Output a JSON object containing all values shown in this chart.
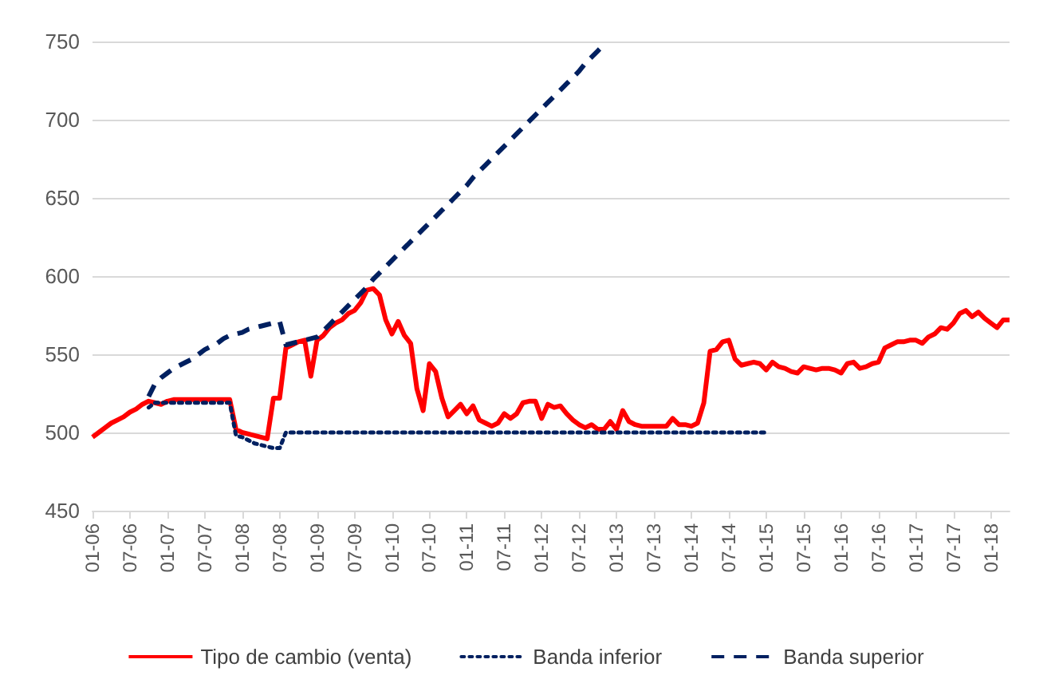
{
  "chart_data": {
    "type": "line",
    "categories": [
      "01-06",
      null,
      null,
      null,
      null,
      null,
      "07-06",
      null,
      null,
      null,
      null,
      null,
      "01-07",
      null,
      null,
      null,
      null,
      null,
      "07-07",
      null,
      null,
      null,
      null,
      null,
      "01-08",
      null,
      null,
      null,
      null,
      null,
      "07-08",
      null,
      null,
      null,
      null,
      null,
      "01-09",
      null,
      null,
      null,
      null,
      null,
      "07-09",
      null,
      null,
      null,
      null,
      null,
      "01-10",
      null,
      null,
      null,
      null,
      null,
      "07-10",
      null,
      null,
      null,
      null,
      null,
      "01-11",
      null,
      null,
      null,
      null,
      null,
      "07-11",
      null,
      null,
      null,
      null,
      null,
      "01-12",
      null,
      null,
      null,
      null,
      null,
      "07-12",
      null,
      null,
      null,
      null,
      null,
      "01-13",
      null,
      null,
      null,
      null,
      null,
      "07-13",
      null,
      null,
      null,
      null,
      null,
      "01-14",
      null,
      null,
      null,
      null,
      null,
      "07-14",
      null,
      null,
      null,
      null,
      null,
      "01-15",
      null,
      null,
      null,
      null,
      null,
      "07-15",
      null,
      null,
      null,
      null,
      null,
      "01-16",
      null,
      null,
      null,
      null,
      null,
      "07-16",
      null,
      null,
      null,
      null,
      null,
      "01-17",
      null,
      null,
      null,
      null,
      null,
      "07-17",
      null,
      null,
      null,
      null,
      null,
      "01-18",
      null,
      null,
      null
    ],
    "series": [
      {
        "name": "Tipo de cambio (venta)",
        "color": "#ff0000",
        "line_style": "solid",
        "values": [
          497,
          500,
          503,
          506,
          508,
          510,
          513,
          515,
          518,
          520,
          519,
          518,
          520,
          521,
          521,
          521,
          521,
          521,
          521,
          521,
          521,
          521,
          521,
          502,
          500,
          499,
          498,
          497,
          496,
          522,
          522,
          554,
          556,
          558,
          559,
          536,
          559,
          562,
          567,
          570,
          572,
          576,
          578,
          583,
          591,
          592,
          588,
          572,
          563,
          571,
          562,
          557,
          528,
          514,
          544,
          539,
          522,
          510,
          514,
          518,
          512,
          517,
          508,
          506,
          504,
          506,
          512,
          509,
          512,
          519,
          520,
          520,
          509,
          518,
          516,
          517,
          512,
          508,
          505,
          503,
          505,
          502,
          502,
          507,
          502,
          514,
          507,
          505,
          504,
          504,
          504,
          504,
          504,
          509,
          505,
          505,
          504,
          506,
          519,
          552,
          553,
          558,
          559,
          547,
          543,
          544,
          545,
          544,
          540,
          545,
          542,
          541,
          539,
          538,
          542,
          541,
          540,
          541,
          541,
          540,
          538,
          544,
          545,
          541,
          542,
          544,
          545,
          554,
          556,
          558,
          558,
          559,
          559,
          557,
          561,
          563,
          567,
          566,
          570,
          576,
          578,
          574,
          577,
          573,
          570,
          567,
          572,
          572
        ]
      },
      {
        "name": "Banda inferior",
        "color": "#002060",
        "line_style": "dotted",
        "values": [
          null,
          null,
          null,
          null,
          null,
          null,
          null,
          null,
          null,
          516,
          519,
          519,
          519,
          519,
          519,
          519,
          519,
          519,
          519,
          519,
          519,
          519,
          519,
          498,
          497,
          495,
          493,
          492,
          491,
          490,
          490,
          500,
          500,
          500,
          500,
          500,
          500,
          500,
          500,
          500,
          500,
          500,
          500,
          500,
          500,
          500,
          500,
          500,
          500,
          500,
          500,
          500,
          500,
          500,
          500,
          500,
          500,
          500,
          500,
          500,
          500,
          500,
          500,
          500,
          500,
          500,
          500,
          500,
          500,
          500,
          500,
          500,
          500,
          500,
          500,
          500,
          500,
          500,
          500,
          500,
          500,
          500,
          500,
          500,
          500,
          500,
          500,
          500,
          500,
          500,
          500,
          500,
          500,
          500,
          500,
          500,
          500,
          500,
          500,
          500,
          500,
          500,
          500,
          500,
          500,
          500,
          500,
          500,
          500,
          null,
          null,
          null,
          null,
          null,
          null,
          null,
          null,
          null,
          null,
          null,
          null,
          null,
          null,
          null,
          null,
          null,
          null,
          null,
          null,
          null,
          null,
          null,
          null,
          null,
          null,
          null,
          null,
          null,
          null,
          null,
          null,
          null,
          null,
          null,
          null,
          null,
          null,
          null
        ]
      },
      {
        "name": "Banda superior",
        "color": "#002060",
        "line_style": "dashed",
        "values": [
          null,
          null,
          null,
          null,
          null,
          null,
          null,
          null,
          null,
          523,
          531,
          535,
          538,
          541,
          543,
          545,
          547,
          550,
          553,
          555,
          557,
          560,
          562,
          563,
          564,
          566,
          567,
          568,
          569,
          570,
          571,
          556,
          557,
          558,
          559,
          560,
          561,
          565,
          569,
          573,
          577,
          581,
          585,
          589,
          593,
          598,
          602,
          606,
          610,
          614,
          618,
          622,
          626,
          630,
          634,
          638,
          642,
          646,
          650,
          654,
          658,
          663,
          667,
          671,
          675,
          679,
          683,
          687,
          691,
          695,
          699,
          703,
          707,
          711,
          715,
          719,
          723,
          727,
          731,
          736,
          740,
          744,
          748,
          null,
          null,
          null,
          null,
          null,
          null,
          null,
          null,
          null,
          null,
          null,
          null,
          null,
          null,
          null,
          null,
          null,
          null,
          null,
          null,
          null,
          null,
          null,
          null,
          null,
          null,
          null,
          null,
          null,
          null,
          null,
          null,
          null,
          null,
          null,
          null,
          null,
          null,
          null,
          null,
          null,
          null,
          null,
          null,
          null,
          null,
          null,
          null,
          null,
          null,
          null,
          null,
          null,
          null,
          null,
          null,
          null,
          null,
          null,
          null,
          null,
          null,
          null,
          null,
          null
        ]
      }
    ],
    "ylim": [
      450,
      750
    ],
    "yticks": [
      450,
      500,
      550,
      600,
      650,
      700,
      750
    ],
    "grid": "y",
    "legend": "bottom",
    "marker": "none"
  }
}
